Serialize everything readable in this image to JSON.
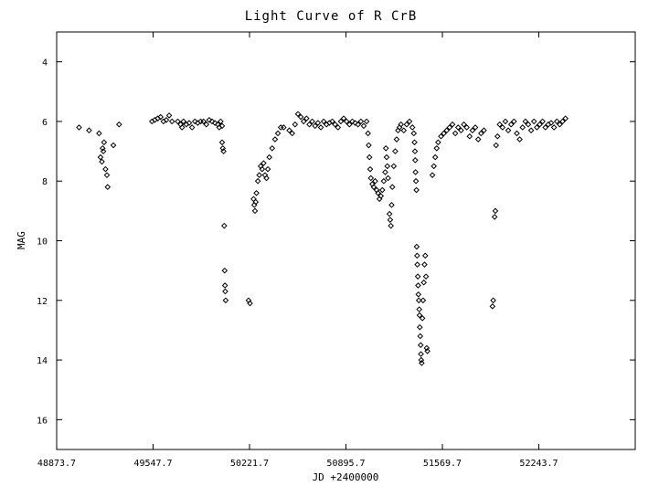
{
  "chart_data": {
    "type": "scatter",
    "title": "Light Curve of R CrB",
    "xlabel": "JD +2400000",
    "ylabel": "MAG",
    "x_ticks": [
      "48873.7",
      "49547.7",
      "50221.7",
      "50895.7",
      "51569.7",
      "52243.7"
    ],
    "y_ticks": [
      "4",
      "6",
      "8",
      "10",
      "12",
      "14",
      "16"
    ],
    "xlim": [
      48873.7,
      52917.7
    ],
    "ylim": [
      17,
      3
    ],
    "y_inverted": true,
    "grid": false,
    "marker": "diamond",
    "marker_color": "#000000",
    "series": [
      {
        "points": [
          [
            49030,
            6.2
          ],
          [
            49100,
            6.3
          ],
          [
            49170,
            6.4
          ],
          [
            49180,
            7.2
          ],
          [
            49190,
            7.35
          ],
          [
            49195,
            6.9
          ],
          [
            49200,
            7.0
          ],
          [
            49205,
            6.7
          ],
          [
            49215,
            7.6
          ],
          [
            49225,
            7.8
          ],
          [
            49230,
            8.2
          ],
          [
            49270,
            6.8
          ],
          [
            49310,
            6.1
          ],
          [
            49540,
            6.0
          ],
          [
            49560,
            5.95
          ],
          [
            49580,
            5.9
          ],
          [
            49600,
            5.85
          ],
          [
            49620,
            6.0
          ],
          [
            49640,
            5.95
          ],
          [
            49660,
            5.8
          ],
          [
            49680,
            6.0
          ],
          [
            49720,
            6.0
          ],
          [
            49740,
            6.1
          ],
          [
            49750,
            6.2
          ],
          [
            49760,
            6.0
          ],
          [
            49780,
            6.1
          ],
          [
            49800,
            6.05
          ],
          [
            49820,
            6.2
          ],
          [
            49840,
            6.0
          ],
          [
            49860,
            6.05
          ],
          [
            49880,
            6.0
          ],
          [
            49900,
            6.0
          ],
          [
            49920,
            6.1
          ],
          [
            49940,
            5.95
          ],
          [
            49960,
            6.0
          ],
          [
            49980,
            6.05
          ],
          [
            50000,
            6.1
          ],
          [
            50010,
            6.2
          ],
          [
            50020,
            6.0
          ],
          [
            50030,
            6.15
          ],
          [
            50030,
            6.7
          ],
          [
            50035,
            6.9
          ],
          [
            50040,
            7.0
          ],
          [
            50045,
            9.5
          ],
          [
            50048,
            11.0
          ],
          [
            50050,
            11.5
          ],
          [
            50052,
            11.7
          ],
          [
            50055,
            12.0
          ],
          [
            50215,
            12.0
          ],
          [
            50225,
            12.1
          ],
          [
            50250,
            8.6
          ],
          [
            50255,
            8.8
          ],
          [
            50260,
            9.0
          ],
          [
            50265,
            8.7
          ],
          [
            50270,
            8.4
          ],
          [
            50280,
            8.0
          ],
          [
            50290,
            7.8
          ],
          [
            50300,
            7.5
          ],
          [
            50310,
            7.6
          ],
          [
            50320,
            7.4
          ],
          [
            50330,
            7.8
          ],
          [
            50340,
            7.9
          ],
          [
            50350,
            7.6
          ],
          [
            50360,
            7.2
          ],
          [
            50380,
            6.9
          ],
          [
            50400,
            6.6
          ],
          [
            50420,
            6.4
          ],
          [
            50440,
            6.2
          ],
          [
            50460,
            6.2
          ],
          [
            50500,
            6.3
          ],
          [
            50520,
            6.4
          ],
          [
            50540,
            6.1
          ],
          [
            50560,
            5.75
          ],
          [
            50580,
            5.85
          ],
          [
            50600,
            6.0
          ],
          [
            50620,
            5.9
          ],
          [
            50640,
            6.1
          ],
          [
            50660,
            6.0
          ],
          [
            50680,
            6.15
          ],
          [
            50700,
            6.05
          ],
          [
            50720,
            6.2
          ],
          [
            50740,
            6.0
          ],
          [
            50760,
            6.1
          ],
          [
            50780,
            6.05
          ],
          [
            50800,
            6.0
          ],
          [
            50820,
            6.1
          ],
          [
            50840,
            6.2
          ],
          [
            50860,
            6.0
          ],
          [
            50880,
            5.9
          ],
          [
            50900,
            6.0
          ],
          [
            50920,
            6.1
          ],
          [
            50940,
            6.0
          ],
          [
            50960,
            6.05
          ],
          [
            50980,
            6.1
          ],
          [
            51000,
            6.0
          ],
          [
            51020,
            6.15
          ],
          [
            51040,
            6.0
          ],
          [
            51050,
            6.4
          ],
          [
            51055,
            6.8
          ],
          [
            51060,
            7.2
          ],
          [
            51065,
            7.6
          ],
          [
            51070,
            7.9
          ],
          [
            51080,
            8.1
          ],
          [
            51090,
            8.2
          ],
          [
            51100,
            8.0
          ],
          [
            51110,
            8.3
          ],
          [
            51120,
            8.4
          ],
          [
            51130,
            8.6
          ],
          [
            51140,
            8.5
          ],
          [
            51150,
            8.3
          ],
          [
            51160,
            8.0
          ],
          [
            51170,
            7.7
          ],
          [
            51175,
            6.9
          ],
          [
            51180,
            7.2
          ],
          [
            51185,
            7.5
          ],
          [
            51190,
            7.9
          ],
          [
            51200,
            9.1
          ],
          [
            51205,
            9.3
          ],
          [
            51210,
            9.5
          ],
          [
            51215,
            8.8
          ],
          [
            51220,
            8.2
          ],
          [
            51230,
            7.5
          ],
          [
            51240,
            7.0
          ],
          [
            51250,
            6.6
          ],
          [
            51260,
            6.3
          ],
          [
            51270,
            6.2
          ],
          [
            51280,
            6.1
          ],
          [
            51300,
            6.3
          ],
          [
            51320,
            6.1
          ],
          [
            51340,
            6.0
          ],
          [
            51360,
            6.2
          ],
          [
            51370,
            6.4
          ],
          [
            51375,
            6.7
          ],
          [
            51378,
            7.0
          ],
          [
            51380,
            7.3
          ],
          [
            51382,
            7.7
          ],
          [
            51385,
            8.0
          ],
          [
            51388,
            8.3
          ],
          [
            51390,
            10.2
          ],
          [
            51393,
            10.5
          ],
          [
            51395,
            10.8
          ],
          [
            51398,
            11.2
          ],
          [
            51400,
            11.5
          ],
          [
            51402,
            11.8
          ],
          [
            51405,
            12.0
          ],
          [
            51408,
            12.3
          ],
          [
            51410,
            12.5
          ],
          [
            51412,
            12.9
          ],
          [
            51415,
            13.2
          ],
          [
            51418,
            13.5
          ],
          [
            51420,
            13.8
          ],
          [
            51422,
            14.0
          ],
          [
            51425,
            14.1
          ],
          [
            51430,
            12.6
          ],
          [
            51435,
            12.0
          ],
          [
            51440,
            11.4
          ],
          [
            51445,
            10.8
          ],
          [
            51450,
            10.5
          ],
          [
            51455,
            11.2
          ],
          [
            51460,
            13.6
          ],
          [
            51465,
            13.7
          ],
          [
            51500,
            7.8
          ],
          [
            51510,
            7.5
          ],
          [
            51520,
            7.2
          ],
          [
            51530,
            6.9
          ],
          [
            51540,
            6.7
          ],
          [
            51560,
            6.5
          ],
          [
            51580,
            6.4
          ],
          [
            51600,
            6.3
          ],
          [
            51620,
            6.2
          ],
          [
            51640,
            6.1
          ],
          [
            51660,
            6.4
          ],
          [
            51680,
            6.2
          ],
          [
            51700,
            6.3
          ],
          [
            51720,
            6.1
          ],
          [
            51740,
            6.2
          ],
          [
            51760,
            6.5
          ],
          [
            51780,
            6.3
          ],
          [
            51800,
            6.2
          ],
          [
            51820,
            6.6
          ],
          [
            51840,
            6.4
          ],
          [
            51860,
            6.3
          ],
          [
            51920,
            12.2
          ],
          [
            51925,
            12.0
          ],
          [
            51935,
            9.2
          ],
          [
            51940,
            9.0
          ],
          [
            51945,
            6.8
          ],
          [
            51955,
            6.5
          ],
          [
            51970,
            6.1
          ],
          [
            51990,
            6.2
          ],
          [
            52010,
            6.0
          ],
          [
            52030,
            6.3
          ],
          [
            52050,
            6.1
          ],
          [
            52070,
            6.0
          ],
          [
            52090,
            6.4
          ],
          [
            52110,
            6.6
          ],
          [
            52130,
            6.2
          ],
          [
            52150,
            6.0
          ],
          [
            52170,
            6.1
          ],
          [
            52190,
            6.3
          ],
          [
            52210,
            6.0
          ],
          [
            52230,
            6.2
          ],
          [
            52250,
            6.1
          ],
          [
            52270,
            6.0
          ],
          [
            52290,
            6.2
          ],
          [
            52310,
            6.1
          ],
          [
            52330,
            6.05
          ],
          [
            52350,
            6.2
          ],
          [
            52370,
            6.0
          ],
          [
            52390,
            6.1
          ],
          [
            52410,
            6.0
          ],
          [
            52430,
            5.9
          ]
        ]
      }
    ]
  }
}
